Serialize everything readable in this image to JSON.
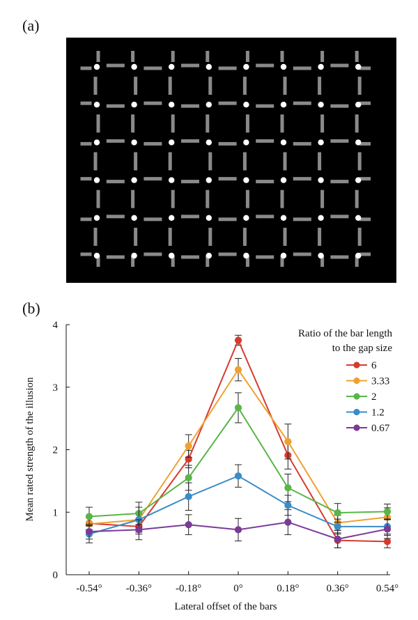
{
  "panels": {
    "a_label": "(a)",
    "b_label": "(b)"
  },
  "stimulus": {
    "background": "#000000",
    "bar_color": "#8a8a8a",
    "dot_color": "#ffffff",
    "dot_rows": 6,
    "dot_cols": 8
  },
  "chart_data": {
    "type": "line",
    "title": "",
    "xlabel": "Lateral offset of the bars",
    "ylabel": "Mean rated strength of the illusion",
    "categories": [
      "-0.54°",
      "-0.36°",
      "-0.18°",
      "0°",
      "0.18°",
      "0.36°",
      "0.54°"
    ],
    "ylim": [
      0,
      4
    ],
    "yticks": [
      "0",
      "1",
      "2",
      "3",
      "4"
    ],
    "grid": false,
    "legend": {
      "title_line1": "Ratio of the bar length",
      "title_line2": "to the gap size",
      "placement": "top-right"
    },
    "series": [
      {
        "name": "6",
        "color": "#d63a2f",
        "values": [
          0.82,
          0.77,
          1.85,
          3.75,
          1.91,
          0.55,
          0.53
        ],
        "errors": [
          0.1,
          0.12,
          0.14,
          0.08,
          0.22,
          0.12,
          0.1
        ]
      },
      {
        "name": "3.33",
        "color": "#f0a030",
        "values": [
          0.81,
          0.88,
          2.06,
          3.28,
          2.13,
          0.83,
          0.92
        ],
        "errors": [
          0.12,
          0.12,
          0.18,
          0.18,
          0.28,
          0.12,
          0.15
        ]
      },
      {
        "name": "2",
        "color": "#5ab548",
        "values": [
          0.93,
          0.98,
          1.55,
          2.67,
          1.39,
          0.99,
          1.01
        ],
        "errors": [
          0.15,
          0.18,
          0.2,
          0.24,
          0.22,
          0.15,
          0.12
        ]
      },
      {
        "name": "1.2",
        "color": "#3a8cc7",
        "values": [
          0.65,
          0.88,
          1.25,
          1.58,
          1.11,
          0.77,
          0.77
        ],
        "errors": [
          0.14,
          0.2,
          0.22,
          0.18,
          0.16,
          0.12,
          0.12
        ]
      },
      {
        "name": "0.67",
        "color": "#7b3a96",
        "values": [
          0.69,
          0.72,
          0.8,
          0.72,
          0.84,
          0.57,
          0.73
        ],
        "errors": [
          0.12,
          0.16,
          0.16,
          0.18,
          0.2,
          0.14,
          0.15
        ]
      }
    ]
  }
}
